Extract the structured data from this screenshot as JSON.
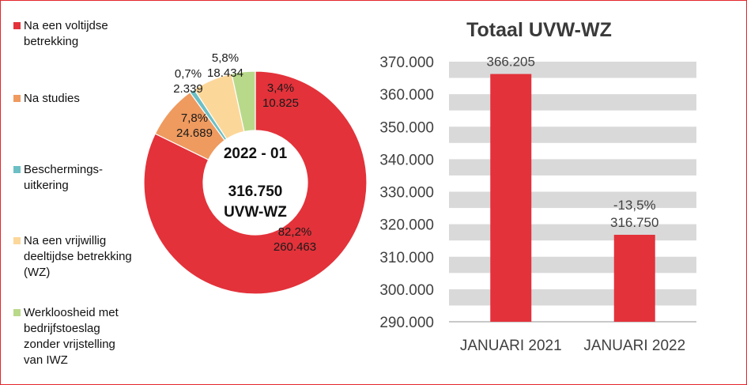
{
  "chart_data": [
    {
      "type": "pie",
      "variant": "donut",
      "center_period": "2022 - 01",
      "center_total": "316.750",
      "center_unit": "UVW-WZ",
      "legend_position": "left",
      "slices": [
        {
          "name": "Na een voltijdse\nbetrekking",
          "value": 260463,
          "percent": 82.2,
          "pct_label": "82,2%",
          "val_label": "260.463",
          "color": "#e3323a"
        },
        {
          "name": "Na studies",
          "value": 24689,
          "percent": 7.8,
          "pct_label": "7,8%",
          "val_label": "24.689",
          "color": "#ef9a5f"
        },
        {
          "name": "Beschermings-\nuitkering",
          "value": 2339,
          "percent": 0.7,
          "pct_label": "0,7%",
          "val_label": "2.339",
          "color": "#6cbfc4"
        },
        {
          "name": "Na een vrijwillig\ndeeltijdse betrekking\n(WZ)",
          "value": 18434,
          "percent": 5.8,
          "pct_label": "5,8%",
          "val_label": "18.434",
          "color": "#fcd79a"
        },
        {
          "name": "Werkloosheid met\nbedrijfstoeslag\nzonder vrijstelling\nvan IWZ",
          "value": 10825,
          "percent": 3.4,
          "pct_label": "3,4%",
          "val_label": "10.825",
          "color": "#b9d98a"
        }
      ]
    },
    {
      "type": "bar",
      "title": "Totaal UVW-WZ",
      "categories": [
        "JANUARI 2021",
        "JANUARI 2022"
      ],
      "values": [
        366205,
        316750
      ],
      "data_labels": [
        "366.205",
        "316.750"
      ],
      "change_label": "-13,5%",
      "ylim": [
        290000,
        370000
      ],
      "yticks": [
        "290.000",
        "300.000",
        "310.000",
        "320.000",
        "330.000",
        "340.000",
        "350.000",
        "360.000",
        "370.000"
      ],
      "bar_color": "#e3323a",
      "band_color": "#d9d9d9",
      "grid": true
    }
  ]
}
